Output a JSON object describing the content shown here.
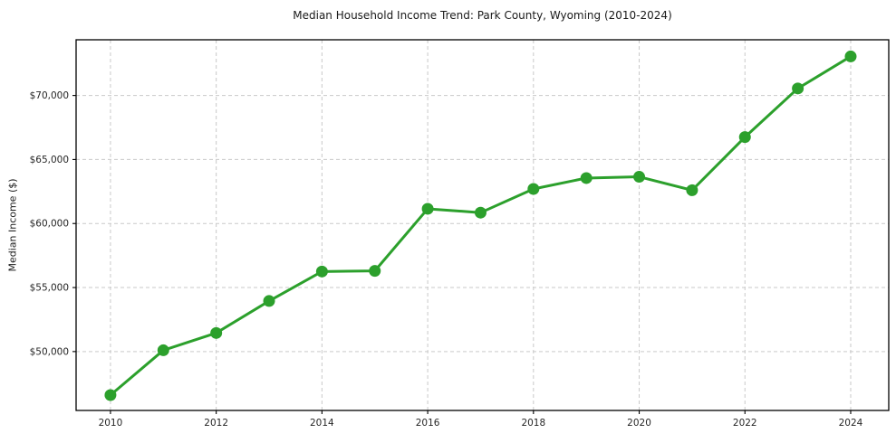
{
  "figure": {
    "title": "Median Household Income Trend: Park County, Wyoming (2010-2024)"
  },
  "chart_data": {
    "type": "line",
    "title": "Median Household Income Trend: Park County, Wyoming (2010-2024)",
    "xlabel": "",
    "ylabel": "Median Income ($)",
    "series_name": "Median Household Income",
    "x": [
      2010,
      2011,
      2012,
      2013,
      2014,
      2015,
      2016,
      2017,
      2018,
      2019,
      2020,
      2021,
      2022,
      2023,
      2024
    ],
    "values": [
      46600,
      50100,
      51450,
      53950,
      56250,
      56300,
      61150,
      60850,
      62700,
      63550,
      63650,
      62600,
      66750,
      70550,
      73050
    ],
    "xticks": {
      "values": [
        2010,
        2012,
        2014,
        2016,
        2018,
        2020,
        2022,
        2024
      ],
      "labels": [
        "2010",
        "2012",
        "2014",
        "2016",
        "2018",
        "2020",
        "2022",
        "2024"
      ]
    },
    "yticks": {
      "values": [
        50000,
        55000,
        60000,
        65000,
        70000
      ],
      "labels": [
        "$50,000",
        "$55,000",
        "$60,000",
        "$65,000",
        "$70,000"
      ]
    },
    "xlim": [
      2009.35,
      2024.72
    ],
    "ylim": [
      45400,
      74350
    ],
    "grid": true,
    "grid_style": "dashed",
    "legend": "none",
    "colors": {
      "line": "#2ca02c",
      "marker": "#2ca02c",
      "grid": "#c9c9c9",
      "frame": "#000000",
      "tick_text": "#262626"
    },
    "line_width": 3,
    "marker": "circle",
    "marker_radius": 6.5
  }
}
